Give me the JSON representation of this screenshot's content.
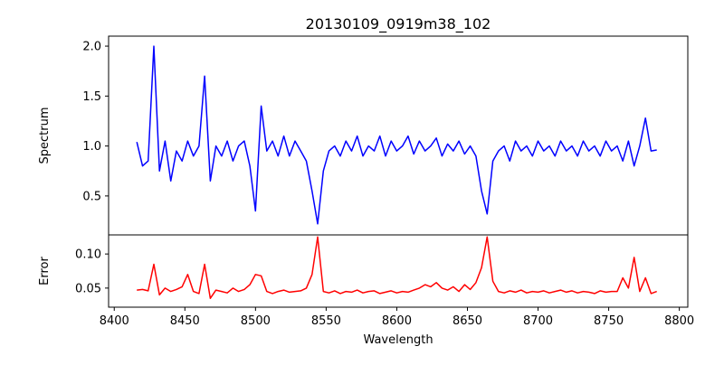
{
  "chart_data": [
    {
      "type": "line",
      "title": "20130109_0919m38_102",
      "xlabel": "",
      "ylabel": "Spectrum",
      "xlim": [
        8396,
        8806
      ],
      "ylim": [
        0.11,
        2.1
      ],
      "yticks": [
        0.5,
        1.0,
        1.5,
        2.0
      ],
      "ytick_labels": [
        "0.5",
        "1.0",
        "1.5",
        "2.0"
      ],
      "grid": false,
      "color": "#0000ff",
      "x_start": 8416,
      "x_step": 4,
      "values": [
        1.04,
        0.8,
        0.85,
        2.0,
        0.75,
        1.05,
        0.65,
        0.95,
        0.85,
        1.05,
        0.9,
        1.0,
        1.7,
        0.65,
        1.0,
        0.9,
        1.05,
        0.85,
        1.0,
        1.05,
        0.8,
        0.35,
        1.4,
        0.95,
        1.05,
        0.9,
        1.1,
        0.9,
        1.05,
        0.95,
        0.85,
        0.55,
        0.22,
        0.75,
        0.95,
        1.0,
        0.9,
        1.05,
        0.95,
        1.1,
        0.9,
        1.0,
        0.95,
        1.1,
        0.9,
        1.05,
        0.95,
        1.0,
        1.1,
        0.92,
        1.05,
        0.95,
        1.0,
        1.08,
        0.9,
        1.02,
        0.95,
        1.05,
        0.92,
        1.0,
        0.9,
        0.55,
        0.32,
        0.85,
        0.95,
        1.0,
        0.85,
        1.05,
        0.95,
        1.0,
        0.9,
        1.05,
        0.95,
        1.0,
        0.9,
        1.05,
        0.95,
        1.0,
        0.9,
        1.05,
        0.95,
        1.0,
        0.9,
        1.05,
        0.95,
        1.0,
        0.85,
        1.05,
        0.8,
        1.0,
        1.28,
        0.95,
        0.96
      ]
    },
    {
      "type": "line",
      "title": "",
      "xlabel": "Wavelength",
      "ylabel": "Error",
      "xlim": [
        8396,
        8806
      ],
      "ylim": [
        0.022,
        0.128
      ],
      "xticks": [
        8400,
        8450,
        8500,
        8550,
        8600,
        8650,
        8700,
        8750,
        8800
      ],
      "xtick_labels": [
        "8400",
        "8450",
        "8500",
        "8550",
        "8600",
        "8650",
        "8700",
        "8750",
        "8800"
      ],
      "yticks": [
        0.05,
        0.1
      ],
      "ytick_labels": [
        "0.05",
        "0.10"
      ],
      "grid": false,
      "color": "#ff0000",
      "x_start": 8416,
      "x_step": 4,
      "values": [
        0.047,
        0.048,
        0.046,
        0.085,
        0.04,
        0.05,
        0.045,
        0.048,
        0.052,
        0.07,
        0.045,
        0.042,
        0.085,
        0.035,
        0.047,
        0.045,
        0.043,
        0.05,
        0.045,
        0.048,
        0.055,
        0.07,
        0.068,
        0.045,
        0.042,
        0.045,
        0.047,
        0.044,
        0.045,
        0.046,
        0.05,
        0.07,
        0.125,
        0.045,
        0.043,
        0.046,
        0.042,
        0.045,
        0.044,
        0.047,
        0.043,
        0.045,
        0.046,
        0.042,
        0.044,
        0.046,
        0.043,
        0.045,
        0.044,
        0.047,
        0.05,
        0.055,
        0.052,
        0.058,
        0.05,
        0.047,
        0.052,
        0.045,
        0.055,
        0.048,
        0.058,
        0.08,
        0.125,
        0.06,
        0.045,
        0.043,
        0.046,
        0.044,
        0.047,
        0.043,
        0.045,
        0.044,
        0.046,
        0.043,
        0.045,
        0.047,
        0.044,
        0.046,
        0.043,
        0.045,
        0.044,
        0.042,
        0.046,
        0.044,
        0.045,
        0.045,
        0.065,
        0.05,
        0.095,
        0.045,
        0.065,
        0.042,
        0.045
      ]
    }
  ]
}
